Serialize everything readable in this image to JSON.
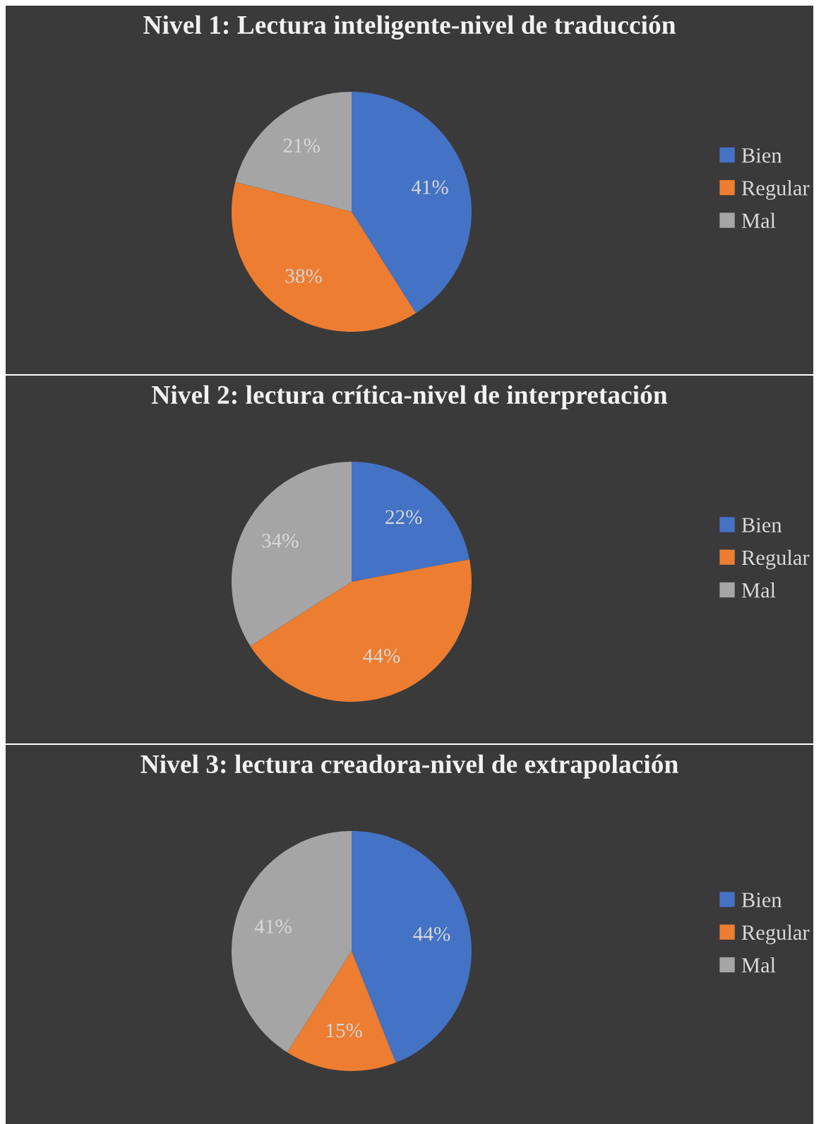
{
  "chart_data": [
    {
      "type": "pie",
      "title": "Nivel 1: Lectura inteligente-nivel de traducción",
      "categories": [
        "Bien",
        "Regular",
        "Mal"
      ],
      "values": [
        41,
        38,
        21
      ],
      "colors": [
        "#4472c4",
        "#ed7d31",
        "#a5a5a5"
      ],
      "value_labels": [
        "41%",
        "38%",
        "21%"
      ],
      "legend": "right"
    },
    {
      "type": "pie",
      "title": "Nivel 2: lectura crítica-nivel de interpretación",
      "categories": [
        "Bien",
        "Regular",
        "Mal"
      ],
      "values": [
        22,
        44,
        34
      ],
      "colors": [
        "#4472c4",
        "#ed7d31",
        "#a5a5a5"
      ],
      "value_labels": [
        "22%",
        "44%",
        "34%"
      ],
      "legend": "right"
    },
    {
      "type": "pie",
      "title": "Nivel 3: lectura creadora-nivel de extrapolación",
      "categories": [
        "Bien",
        "Regular",
        "Mal"
      ],
      "values": [
        44,
        15,
        41
      ],
      "colors": [
        "#4472c4",
        "#ed7d31",
        "#a5a5a5"
      ],
      "value_labels": [
        "44%",
        "15%",
        "41%"
      ],
      "legend": "right"
    }
  ]
}
